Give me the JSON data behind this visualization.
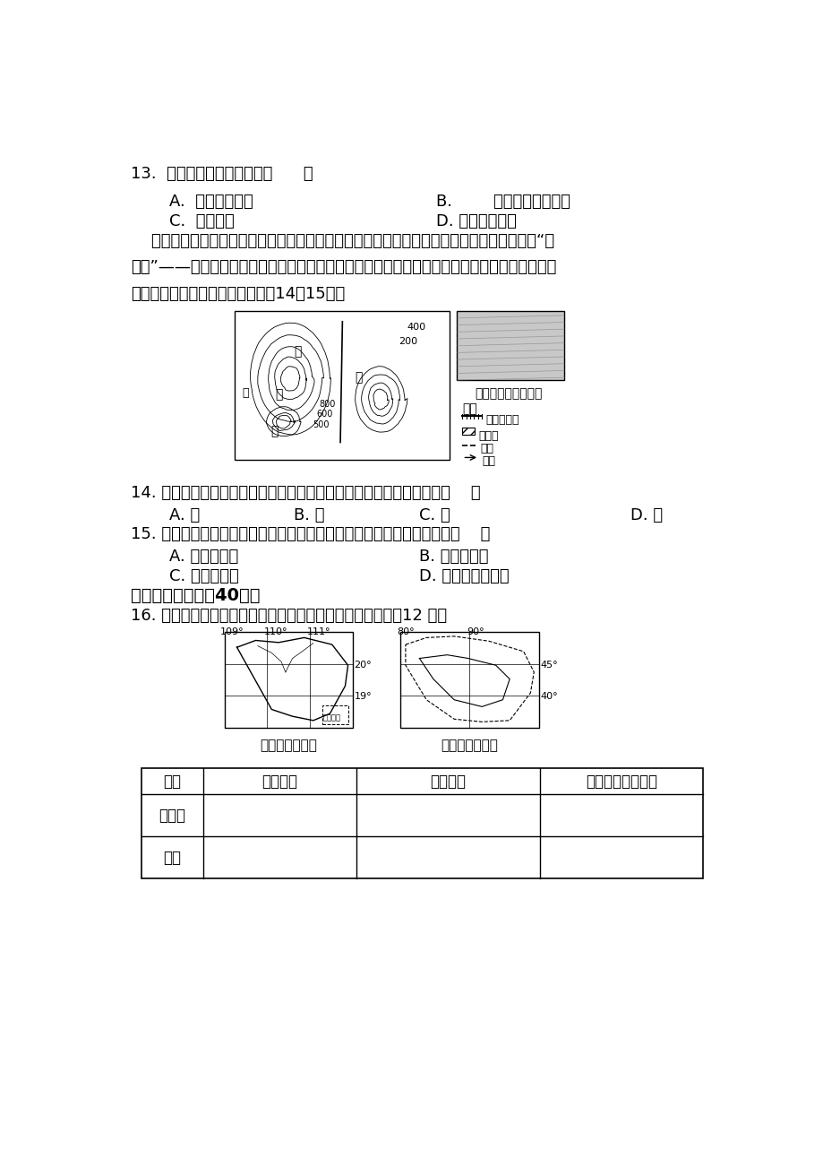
{
  "bg_color": "#ffffff",
  "text_color": "#000000",
  "q13": "13.  与甲地区相比，乙地区（      ）",
  "q13A": "A.  沙尘暴频度小",
  "q13B": "B.        土壤有机质含量高",
  "q13C": "C.  降水量少",
  "q13D": "D. 生物生产力高",
  "para": "    图示意我国华北平原西部某区域等高线图，图中低山、丘陵地带以荔山草坡为主，正在打造“太\n阳山”——建设大型山坡集中式光伏发电站。光伏发电站的发电效率主要与日照强度、日照时间和\n太阳能面板清洁度有关。据此完成14～15题。",
  "q14": "14. 在甲、乙、丙、丁四个荔山草坡安置太阳能板，发电效率最高的是（    ）",
  "q14A": "A. 甲",
  "q14B": "B. 乙",
  "q14C": "C. 丙",
  "q14D": "D. 丁",
  "q15": "15. 与甘肃河西走廘相比，该地建设大型集中式光伏发电站的比较优势是（    ）",
  "q15A": "A. 太阳辐射强",
  "q15B": "B. 日照时数多",
  "q15C": "C. 用地成本低",
  "q15D": "D. 面板清扫频次少",
  "sec2": "二、非选择题（八40分）",
  "q16": "16. 读我国海南岛和新疆河流分布图，填表回答下列问题。（12 分）",
  "hainan_title": "海南河流分布图",
  "xinjiang_title": "新疆河流分布图",
  "table_headers": [
    "省区",
    "地理位置",
    "地形特点",
    "农业气候资源优势"
  ],
  "table_row1": "海南岛",
  "table_row2": "新疆",
  "map_label_jia": "甲",
  "map_label_yi": "乙",
  "map_label_bing": "丙",
  "map_label_ding": "丁",
  "map_label_xi": "西",
  "legend_title": "图例",
  "legend_railway": "鐵路、桥梁",
  "legend_resident": "居民点",
  "legend_tunnel": "隙道",
  "legend_river": "河流",
  "photo_label": "山坡集中式光伏发电",
  "nan_hai_label": "南海诸岛"
}
